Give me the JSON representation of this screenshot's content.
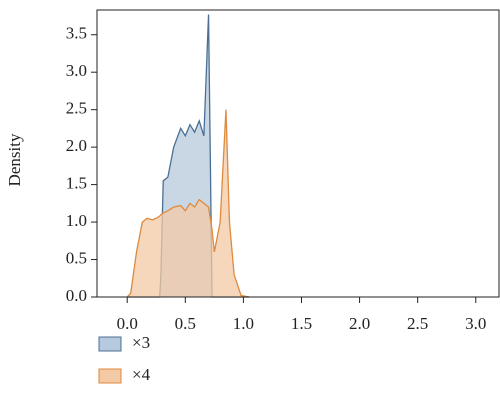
{
  "chart_data": {
    "type": "density",
    "ylabel": "Density",
    "x": [
      0.0,
      0.03,
      0.08,
      0.13,
      0.17,
      0.22,
      0.26,
      0.28,
      0.29,
      0.31,
      0.35,
      0.4,
      0.46,
      0.5,
      0.54,
      0.58,
      0.62,
      0.66,
      0.7,
      0.73,
      0.75,
      0.8,
      0.85,
      0.88,
      0.92,
      0.98,
      1.05
    ],
    "series": [
      {
        "name": "×3",
        "color": "#4a6f94",
        "fill": "#b7c9dc",
        "values": [
          0,
          0,
          0,
          0,
          0,
          0,
          0,
          0,
          0.3,
          1.55,
          1.6,
          2.0,
          2.25,
          2.15,
          2.3,
          2.2,
          2.35,
          2.15,
          3.77,
          0,
          0,
          0,
          0,
          0,
          0,
          0,
          0
        ]
      },
      {
        "name": "×4",
        "color": "#dd8a3c",
        "fill": "#f3c9a6",
        "values": [
          0,
          0.05,
          0.6,
          1.0,
          1.05,
          1.03,
          1.06,
          1.08,
          1.1,
          1.12,
          1.15,
          1.2,
          1.22,
          1.15,
          1.25,
          1.2,
          1.3,
          1.25,
          1.2,
          0.9,
          0.6,
          1.0,
          2.5,
          1.0,
          0.3,
          0.02,
          0
        ]
      }
    ],
    "xlim": [
      -0.26,
      3.2
    ],
    "ylim": [
      0,
      3.83
    ],
    "xticks": [
      {
        "value": 0,
        "label": "0.0"
      },
      0.5,
      {
        "value": 1,
        "label": "1.0"
      },
      1.5,
      {
        "value": 2,
        "label": "2.0"
      },
      2.5,
      {
        "value": 3,
        "label": "3.0"
      }
    ],
    "yticks": [
      {
        "value": 0,
        "label": "0.0"
      },
      0.5,
      {
        "value": 1,
        "label": "1.0"
      },
      1.5,
      {
        "value": 2,
        "label": "2.0"
      },
      2.5,
      {
        "value": 3,
        "label": "3.0"
      },
      3.5
    ]
  }
}
